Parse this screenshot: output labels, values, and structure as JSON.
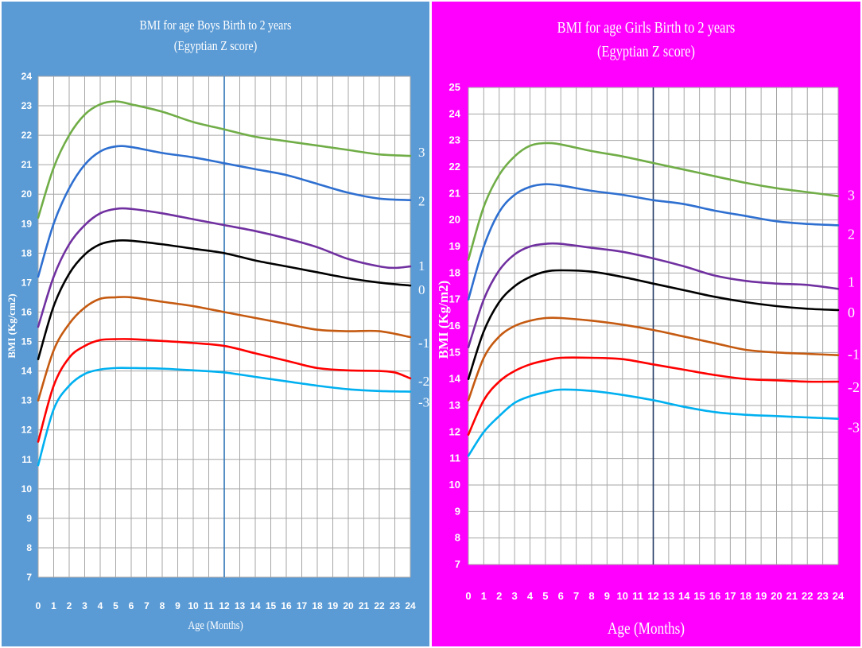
{
  "colors": {
    "boys_bg": "#5B9BD5",
    "girls_bg": "#FF00FF",
    "plot_bg": "#ffffff",
    "grid": "#a6a6a6",
    "ref_line_boys": "#2E75B6",
    "ref_line_girls": "#1F3864"
  },
  "chart_data": [
    {
      "type": "line",
      "title": "BMI for age Boys Birth to 2 years",
      "subtitle": "(Egyptian Z score)",
      "xlabel": "Age (Months)",
      "ylabel": "BMI (Kg/cm2)",
      "xlim": [
        0,
        24
      ],
      "ylim": [
        7,
        24
      ],
      "grid": true,
      "reference_line_x": 12,
      "x_ticks": [
        0,
        1,
        2,
        3,
        4,
        5,
        6,
        7,
        8,
        9,
        10,
        11,
        12,
        13,
        14,
        15,
        16,
        17,
        18,
        19,
        20,
        21,
        22,
        23,
        24
      ],
      "y_ticks": [
        7,
        8,
        9,
        10,
        11,
        12,
        13,
        14,
        15,
        16,
        17,
        18,
        19,
        20,
        21,
        22,
        23,
        24
      ],
      "series": [
        {
          "name": "3",
          "color": "#70AD47",
          "x": [
            0,
            1,
            2,
            3,
            4,
            5,
            6,
            8,
            10,
            12,
            14,
            16,
            18,
            20,
            22,
            24
          ],
          "values": [
            19.2,
            20.9,
            22.0,
            22.7,
            23.05,
            23.15,
            23.05,
            22.8,
            22.45,
            22.2,
            21.95,
            21.8,
            21.65,
            21.5,
            21.35,
            21.3
          ]
        },
        {
          "name": "2",
          "color": "#2E6FD0",
          "x": [
            0,
            1,
            2,
            3,
            4,
            5,
            6,
            8,
            10,
            12,
            14,
            16,
            18,
            20,
            22,
            24
          ],
          "values": [
            17.2,
            19.0,
            20.2,
            21.0,
            21.45,
            21.62,
            21.6,
            21.4,
            21.25,
            21.05,
            20.85,
            20.65,
            20.35,
            20.05,
            19.85,
            19.8
          ]
        },
        {
          "name": "1",
          "color": "#7030A0",
          "x": [
            0,
            1,
            2,
            3,
            4,
            5,
            6,
            8,
            10,
            12,
            14,
            16,
            18,
            20,
            22,
            23,
            24
          ],
          "values": [
            15.5,
            17.2,
            18.3,
            18.95,
            19.35,
            19.5,
            19.5,
            19.35,
            19.15,
            18.95,
            18.75,
            18.5,
            18.2,
            17.8,
            17.55,
            17.5,
            17.55
          ]
        },
        {
          "name": "0",
          "color": "#000000",
          "x": [
            0,
            1,
            2,
            3,
            4,
            5,
            6,
            8,
            10,
            12,
            14,
            16,
            18,
            20,
            22,
            24
          ],
          "values": [
            14.4,
            16.2,
            17.3,
            17.95,
            18.3,
            18.42,
            18.42,
            18.3,
            18.15,
            18.0,
            17.75,
            17.55,
            17.35,
            17.15,
            17.0,
            16.9
          ]
        },
        {
          "name": "-1",
          "color": "#C55A11",
          "x": [
            0,
            1,
            2,
            3,
            4,
            5,
            6,
            8,
            10,
            12,
            14,
            16,
            18,
            20,
            22,
            24
          ],
          "values": [
            13.0,
            14.7,
            15.6,
            16.15,
            16.45,
            16.5,
            16.5,
            16.35,
            16.2,
            16.0,
            15.8,
            15.6,
            15.4,
            15.35,
            15.35,
            15.15
          ]
        },
        {
          "name": "-2",
          "color": "#FF0000",
          "x": [
            0,
            1,
            2,
            3,
            4,
            5,
            6,
            8,
            10,
            12,
            14,
            16,
            18,
            20,
            22,
            23,
            24
          ],
          "values": [
            11.6,
            13.5,
            14.45,
            14.85,
            15.05,
            15.08,
            15.08,
            15.02,
            14.95,
            14.85,
            14.6,
            14.35,
            14.1,
            14.02,
            14.0,
            13.95,
            13.75
          ]
        },
        {
          "name": "-3",
          "color": "#00B0F0",
          "x": [
            0,
            1,
            2,
            3,
            4,
            5,
            6,
            8,
            10,
            12,
            14,
            16,
            18,
            20,
            22,
            24
          ],
          "values": [
            10.8,
            12.7,
            13.5,
            13.9,
            14.05,
            14.1,
            14.1,
            14.08,
            14.02,
            13.95,
            13.8,
            13.65,
            13.5,
            13.38,
            13.32,
            13.3
          ]
        }
      ]
    },
    {
      "type": "line",
      "title": "BMI for age Girls Birth to 2 years",
      "subtitle": "(Egyptian Z score)",
      "xlabel": "Age (Months)",
      "ylabel": "BMI (Kg/m2)",
      "xlim": [
        0,
        24
      ],
      "ylim": [
        7,
        25
      ],
      "grid": true,
      "reference_line_x": 12,
      "x_ticks": [
        0,
        1,
        2,
        3,
        4,
        5,
        6,
        7,
        8,
        9,
        10,
        11,
        12,
        13,
        14,
        15,
        16,
        17,
        18,
        19,
        20,
        21,
        22,
        23,
        24
      ],
      "y_ticks": [
        7,
        8,
        9,
        10,
        11,
        12,
        13,
        14,
        15,
        16,
        17,
        18,
        19,
        20,
        21,
        22,
        23,
        24,
        25
      ],
      "series": [
        {
          "name": "3",
          "color": "#70AD47",
          "x": [
            0,
            1,
            2,
            3,
            4,
            5,
            6,
            8,
            10,
            12,
            14,
            16,
            18,
            20,
            22,
            24
          ],
          "values": [
            18.5,
            20.5,
            21.7,
            22.4,
            22.8,
            22.9,
            22.85,
            22.6,
            22.4,
            22.15,
            21.9,
            21.65,
            21.4,
            21.2,
            21.05,
            20.9
          ]
        },
        {
          "name": "2",
          "color": "#2E6FD0",
          "x": [
            0,
            1,
            2,
            3,
            4,
            5,
            6,
            8,
            10,
            12,
            14,
            16,
            18,
            20,
            22,
            24
          ],
          "values": [
            17.0,
            19.0,
            20.3,
            20.95,
            21.25,
            21.35,
            21.3,
            21.1,
            20.95,
            20.75,
            20.6,
            20.35,
            20.15,
            19.95,
            19.85,
            19.8
          ]
        },
        {
          "name": "1",
          "color": "#7030A0",
          "x": [
            0,
            1,
            2,
            3,
            4,
            5,
            6,
            8,
            10,
            12,
            14,
            16,
            18,
            20,
            22,
            24
          ],
          "values": [
            15.2,
            17.0,
            18.1,
            18.7,
            19.0,
            19.1,
            19.1,
            18.95,
            18.8,
            18.55,
            18.25,
            17.9,
            17.7,
            17.6,
            17.55,
            17.4
          ]
        },
        {
          "name": "0",
          "color": "#000000",
          "x": [
            0,
            1,
            2,
            3,
            4,
            5,
            6,
            8,
            10,
            12,
            14,
            16,
            18,
            20,
            22,
            24
          ],
          "values": [
            14.0,
            15.8,
            16.9,
            17.5,
            17.85,
            18.05,
            18.1,
            18.05,
            17.85,
            17.6,
            17.35,
            17.1,
            16.9,
            16.75,
            16.65,
            16.6
          ]
        },
        {
          "name": "-1",
          "color": "#C55A11",
          "x": [
            0,
            1,
            2,
            3,
            4,
            5,
            6,
            8,
            10,
            12,
            14,
            16,
            18,
            20,
            22,
            24
          ],
          "values": [
            13.2,
            14.8,
            15.6,
            16.0,
            16.2,
            16.3,
            16.3,
            16.2,
            16.05,
            15.85,
            15.6,
            15.35,
            15.1,
            15.0,
            14.95,
            14.9
          ]
        },
        {
          "name": "-2",
          "color": "#FF0000",
          "x": [
            0,
            1,
            2,
            3,
            4,
            5,
            6,
            8,
            10,
            12,
            14,
            16,
            18,
            20,
            22,
            24
          ],
          "values": [
            11.9,
            13.2,
            13.9,
            14.3,
            14.55,
            14.7,
            14.8,
            14.8,
            14.75,
            14.55,
            14.35,
            14.15,
            14.0,
            13.95,
            13.9,
            13.9
          ]
        },
        {
          "name": "-3",
          "color": "#00B0F0",
          "x": [
            0,
            1,
            2,
            3,
            4,
            5,
            6,
            8,
            10,
            12,
            14,
            16,
            18,
            20,
            22,
            24
          ],
          "values": [
            11.1,
            12.0,
            12.6,
            13.1,
            13.35,
            13.5,
            13.6,
            13.55,
            13.4,
            13.2,
            12.95,
            12.75,
            12.65,
            12.6,
            12.55,
            12.5
          ]
        }
      ]
    }
  ]
}
